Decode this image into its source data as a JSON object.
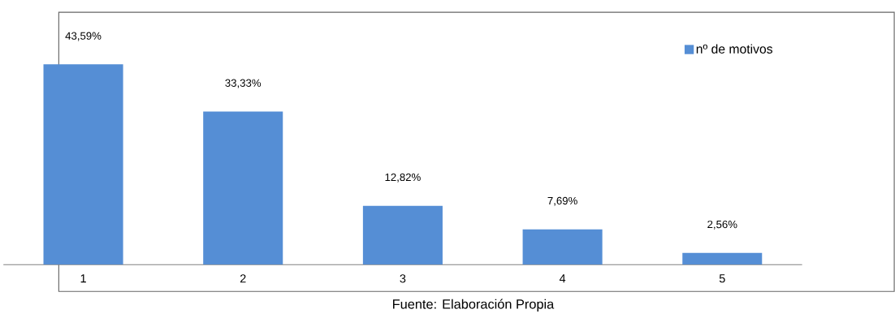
{
  "chart_data": {
    "type": "bar",
    "categories": [
      "1",
      "2",
      "3",
      "4",
      "5"
    ],
    "series": [
      {
        "name": "nº de motivos",
        "color": "#558ed5",
        "values": [
          43.59,
          33.33,
          12.82,
          7.69,
          2.56
        ],
        "value_labels": [
          "43,59%",
          "33,33%",
          "12,82%",
          "7,69%",
          "2,56%"
        ]
      }
    ],
    "legend": "top right",
    "tick_labels": "x",
    "annotations": [
      "Fuente: Elaboración Propia"
    ]
  }
}
